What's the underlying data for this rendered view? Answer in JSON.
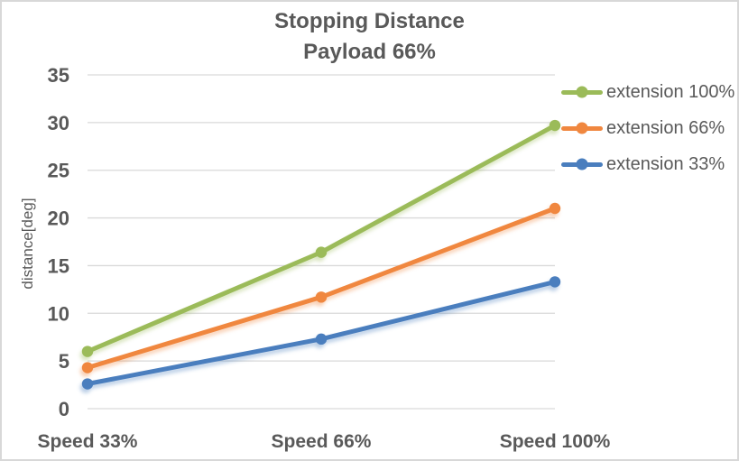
{
  "chart_data": {
    "type": "line",
    "title": "Stopping Distance",
    "subtitle": "Payload 66%",
    "ylabel": "distance[deg]",
    "xlabel": "",
    "categories": [
      "Speed 33%",
      "Speed 66%",
      "Speed 100%"
    ],
    "series": [
      {
        "name": "extension 100%",
        "color": "#9bbb59",
        "values": [
          6.0,
          16.4,
          29.7
        ]
      },
      {
        "name": "extension 66%",
        "color": "#f0873f",
        "values": [
          4.3,
          11.7,
          21.0
        ]
      },
      {
        "name": "extension 33%",
        "color": "#4a7ebe",
        "values": [
          2.6,
          7.3,
          13.3
        ]
      }
    ],
    "ylim": [
      0,
      35
    ],
    "yticks": [
      0,
      5,
      10,
      15,
      20,
      25,
      30,
      35
    ],
    "grid": "horizontal",
    "legend_position": "right",
    "marker": "circle"
  },
  "style": {
    "title_color": "#595959",
    "axis_text_color": "#595959",
    "gridline_color": "#d9d9d9",
    "background": "#ffffff",
    "border_color": "#d8d8d8"
  }
}
